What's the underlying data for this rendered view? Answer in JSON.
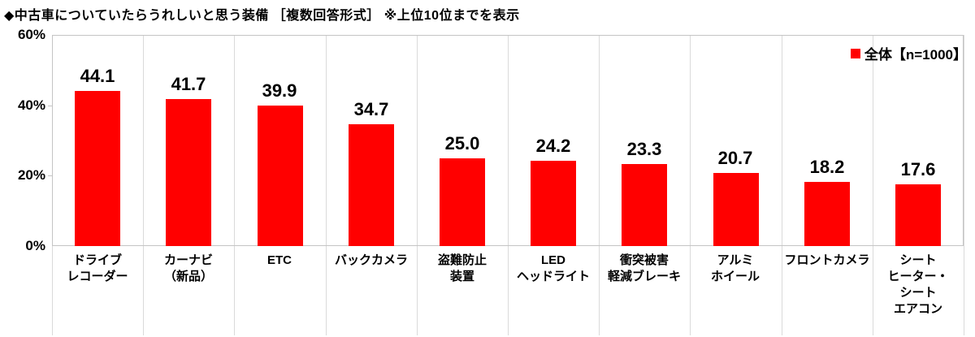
{
  "title": "◆中古車についていたらうれしいと思う装備 ［複数回答形式］ ※上位10位までを表示",
  "legend": {
    "label": "全体【n=1000】"
  },
  "colors": {
    "bar": "#ff0000",
    "legend_marker": "#ff0000",
    "grid": "#dadada",
    "axis": "#c4c4c4",
    "text": "#000000"
  },
  "chart_data": {
    "type": "bar",
    "title": "中古車についていたらうれしいと思う装備（複数回答形式・上位10位までを表示）",
    "categories": [
      "ドライブレコーダー",
      "カーナビ（新品）",
      "ETC",
      "バックカメラ",
      "盗難防止装置",
      "LEDヘッドライト",
      "衝突被害軽減ブレーキ",
      "アルミホイール",
      "フロントカメラ",
      "シートヒーター・シートエアコン"
    ],
    "category_label_lines": [
      [
        "ドライブ",
        "レコーダー"
      ],
      [
        "カーナビ",
        "（新品）"
      ],
      [
        "ETC"
      ],
      [
        "バックカメラ"
      ],
      [
        "盗難防止",
        "装置"
      ],
      [
        "LED",
        "ヘッドライト"
      ],
      [
        "衝突被害",
        "軽減ブレーキ"
      ],
      [
        "アルミ",
        "ホイール"
      ],
      [
        "フロントカメラ"
      ],
      [
        "シート",
        "ヒーター・",
        "シート",
        "エアコン"
      ]
    ],
    "series": [
      {
        "name": "全体【n=1000】",
        "values": [
          44.1,
          41.7,
          39.9,
          34.7,
          25.0,
          24.2,
          23.3,
          20.7,
          18.2,
          17.6
        ]
      }
    ],
    "value_label_decimals": 1,
    "ylabel": "%",
    "ylim": [
      0,
      60
    ],
    "y_ticks": [
      "0%",
      "20%",
      "40%",
      "60%"
    ],
    "y_tick_values": [
      0,
      20,
      40,
      60
    ],
    "grid": "vertical-category-separators",
    "legend_position": "top-right",
    "bar_color": "#ff0000"
  }
}
